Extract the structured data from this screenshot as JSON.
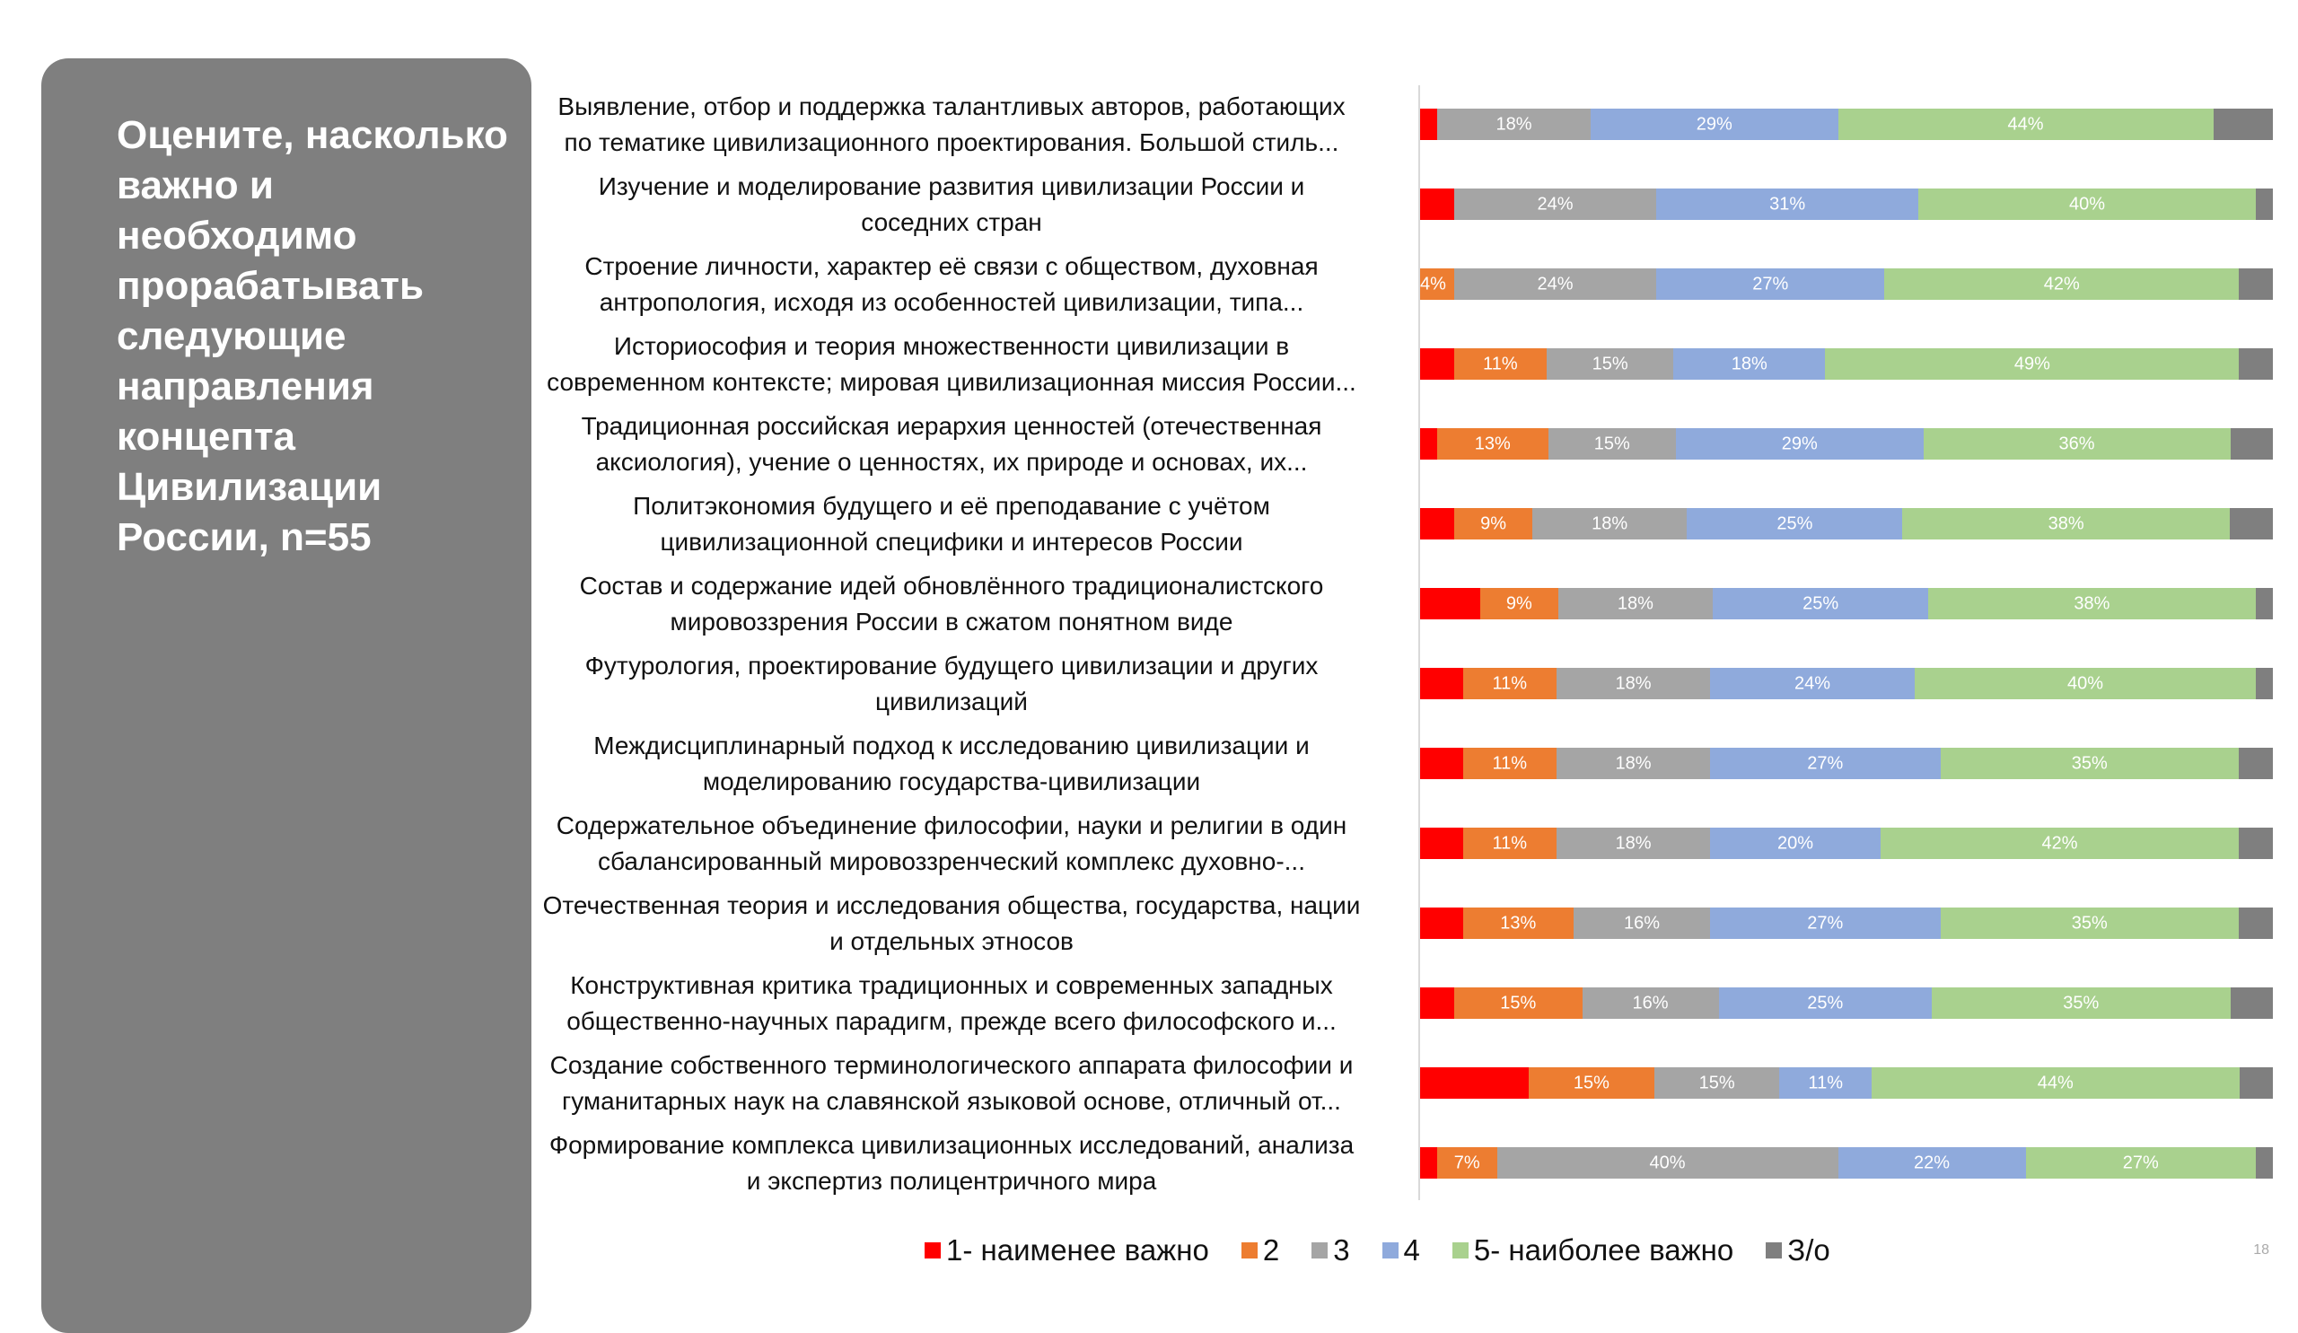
{
  "panel": {
    "title": "Оцените, насколько важно и необходимо прорабатывать следующие направления концепта Цивилизации России, n=55"
  },
  "page_number": "18",
  "chart_data": {
    "type": "bar",
    "orientation": "horizontal-stacked-100",
    "title": "Оцените, насколько важно и необходимо прорабатывать следующие направления концепта Цивилизации России, n=55",
    "legend_position": "bottom",
    "series": [
      {
        "name": "1- наименее важно",
        "color": "#ff0000",
        "show_labels": false,
        "values": [
          2,
          4,
          0,
          4,
          2,
          4,
          7,
          5,
          5,
          5,
          5,
          4,
          13,
          2
        ]
      },
      {
        "name": "2",
        "color": "#ed7d31",
        "show_labels": true,
        "values": [
          0,
          0,
          4,
          11,
          13,
          9,
          9,
          11,
          11,
          11,
          13,
          15,
          15,
          7
        ]
      },
      {
        "name": "3",
        "color": "#a5a5a5",
        "show_labels": true,
        "values": [
          18,
          24,
          24,
          15,
          15,
          18,
          18,
          18,
          18,
          18,
          16,
          16,
          15,
          40
        ]
      },
      {
        "name": "4",
        "color": "#8faadc",
        "show_labels": true,
        "values": [
          29,
          31,
          27,
          18,
          29,
          25,
          25,
          24,
          27,
          20,
          27,
          25,
          11,
          22
        ]
      },
      {
        "name": "5- наиболее важно",
        "color": "#a9d18e",
        "show_labels": true,
        "values": [
          44,
          40,
          42,
          49,
          36,
          38,
          38,
          40,
          35,
          42,
          35,
          35,
          44,
          27
        ]
      },
      {
        "name": "З/о",
        "color": "#7f7f7f",
        "show_labels": false,
        "values": [
          7,
          2,
          4,
          4,
          5,
          5,
          2,
          2,
          4,
          4,
          4,
          5,
          4,
          2
        ]
      }
    ],
    "categories": [
      [
        "Выявление, отбор и поддержка талантливых авторов, работающих",
        "по тематике цивилизационного проектирования. Большой стиль..."
      ],
      [
        "Изучение и моделирование развития цивилизации России и",
        "соседних стран"
      ],
      [
        "Строение личности, характер её связи с обществом, духовная",
        "антропология, исходя из особенностей цивилизации, типа..."
      ],
      [
        "Историософия и теория множественности цивилизации в",
        "современном контексте; мировая цивилизационная миссия России..."
      ],
      [
        "Традиционная российская иерархия ценностей (отечественная",
        "аксиология), учение о ценностях, их природе и основах, их..."
      ],
      [
        "Политэкономия будущего и её преподавание с учётом",
        "цивилизационной специфики и интересов России"
      ],
      [
        "Состав и содержание идей обновлённого традиционалистского",
        "мировоззрения России в сжатом понятном виде"
      ],
      [
        "Футурология, проектирование будущего цивилизации и других",
        "цивилизаций"
      ],
      [
        "Междисциплинарный подход к исследованию цивилизации и",
        "моделированию государства-цивилизации"
      ],
      [
        "Содержательное объединение философии, науки и религии в один",
        "сбалансированный мировоззренческий комплекс духовно-..."
      ],
      [
        "Отечественная теория и исследования общества, государства, нации",
        "и отдельных этносов"
      ],
      [
        "Конструктивная критика традиционных и современных западных",
        "общественно-научных парадигм, прежде всего философского и..."
      ],
      [
        "Создание собственного терминологического аппарата философии и",
        "гуманитарных наук на славянской языковой основе, отличный от..."
      ],
      [
        "Формирование комплекса цивилизационных исследований, анализа",
        "и экспертиз полицентричного мира"
      ]
    ],
    "xlim": [
      0,
      100
    ],
    "unit": "%"
  }
}
